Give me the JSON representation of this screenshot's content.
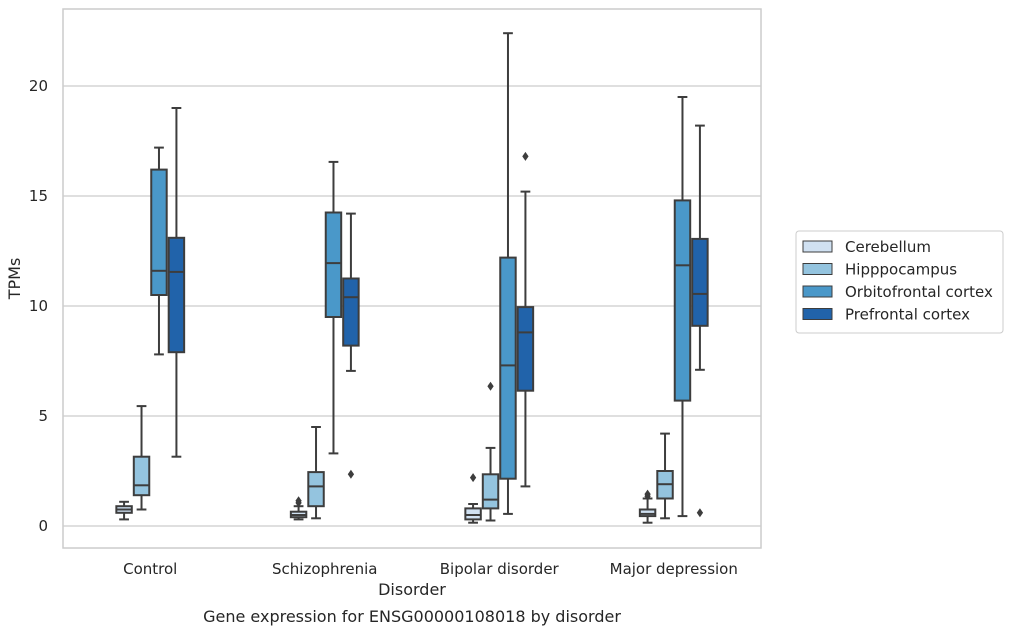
{
  "chart_data": {
    "type": "boxplot",
    "caption": "Gene expression for ENSG00000108018 by disorder",
    "xlabel": "Disorder",
    "ylabel": "TPMs",
    "ylim": [
      -1,
      23.5
    ],
    "yticks": [
      0,
      5,
      10,
      15,
      20
    ],
    "grid": "horizontal",
    "legend_position": "right",
    "categories": [
      "Control",
      "Schizophrenia",
      "Bipolar disorder",
      "Major depression"
    ],
    "series": [
      {
        "name": "Cerebellum",
        "color": "#d0e1f2",
        "boxes": [
          {
            "whislo": 0.3,
            "q1": 0.6,
            "med": 0.75,
            "q3": 0.9,
            "whishi": 1.1,
            "fliers": []
          },
          {
            "whislo": 0.3,
            "q1": 0.4,
            "med": 0.5,
            "q3": 0.65,
            "whishi": 0.9,
            "fliers": [
              1.05,
              1.15
            ]
          },
          {
            "whislo": 0.15,
            "q1": 0.3,
            "med": 0.5,
            "q3": 0.8,
            "whishi": 1.0,
            "fliers": [
              2.2
            ]
          },
          {
            "whislo": 0.15,
            "q1": 0.45,
            "med": 0.55,
            "q3": 0.75,
            "whishi": 1.25,
            "fliers": [
              1.35,
              1.45
            ]
          }
        ]
      },
      {
        "name": "Hipppocampus",
        "color": "#94c4df",
        "boxes": [
          {
            "whislo": 0.75,
            "q1": 1.4,
            "med": 1.85,
            "q3": 3.15,
            "whishi": 5.45,
            "fliers": []
          },
          {
            "whislo": 0.35,
            "q1": 0.9,
            "med": 1.8,
            "q3": 2.45,
            "whishi": 4.5,
            "fliers": []
          },
          {
            "whislo": 0.25,
            "q1": 0.8,
            "med": 1.2,
            "q3": 2.35,
            "whishi": 3.55,
            "fliers": [
              6.35
            ]
          },
          {
            "whislo": 0.35,
            "q1": 1.25,
            "med": 1.9,
            "q3": 2.5,
            "whishi": 4.2,
            "fliers": []
          }
        ]
      },
      {
        "name": "Orbitofrontal cortex",
        "color": "#4a98c9",
        "boxes": [
          {
            "whislo": 7.8,
            "q1": 10.5,
            "med": 11.6,
            "q3": 16.2,
            "whishi": 17.2,
            "fliers": []
          },
          {
            "whislo": 3.3,
            "q1": 9.5,
            "med": 11.95,
            "q3": 14.25,
            "whishi": 16.55,
            "fliers": []
          },
          {
            "whislo": 0.55,
            "q1": 2.15,
            "med": 7.3,
            "q3": 12.2,
            "whishi": 22.4,
            "fliers": []
          },
          {
            "whislo": 0.45,
            "q1": 5.7,
            "med": 11.85,
            "q3": 14.8,
            "whishi": 19.5,
            "fliers": []
          }
        ]
      },
      {
        "name": "Prefrontal cortex",
        "color": "#2163aa",
        "boxes": [
          {
            "whislo": 3.15,
            "q1": 7.9,
            "med": 11.55,
            "q3": 13.1,
            "whishi": 19.0,
            "fliers": []
          },
          {
            "whislo": 7.05,
            "q1": 8.2,
            "med": 10.4,
            "q3": 11.25,
            "whishi": 14.2,
            "fliers": [
              2.35
            ]
          },
          {
            "whislo": 1.8,
            "q1": 6.15,
            "med": 8.8,
            "q3": 9.95,
            "whishi": 15.2,
            "fliers": [
              16.8
            ]
          },
          {
            "whislo": 7.1,
            "q1": 9.1,
            "med": 10.55,
            "q3": 13.05,
            "whishi": 18.2,
            "fliers": [
              0.6
            ]
          }
        ]
      }
    ]
  }
}
